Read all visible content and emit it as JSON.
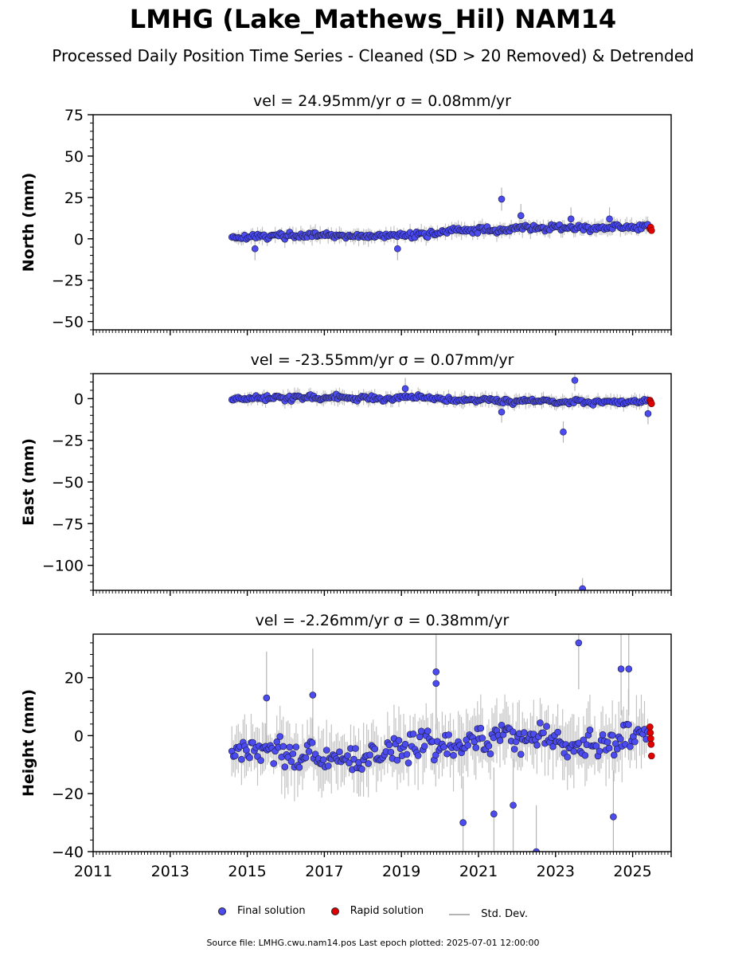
{
  "figure": {
    "title": "LMHG (Lake_Mathews_Hil) NAM14",
    "subtitle": "Processed Daily Position Time Series - Cleaned (SD > 20 Removed) & Detrended",
    "source_note": "Source file: LMHG.cwu.nam14.pos  Last epoch plotted: 2025-07-01 12:00:00"
  },
  "legend": {
    "final": "Final solution",
    "rapid": "Rapid solution",
    "stddev": "Std. Dev."
  },
  "colors": {
    "final": "#4b4bf0",
    "rapid": "#e00000",
    "stddev": "#b4b4b4",
    "marker_edge": "#1a1a3a"
  },
  "chart_data": [
    {
      "type": "scatter",
      "title": "vel = 24.95mm/yr   σ = 0.08mm/yr",
      "ylabel": "North (mm)",
      "xlim": [
        2011,
        2026
      ],
      "ylim": [
        -55,
        75
      ],
      "yticks": [
        -50,
        -25,
        0,
        25,
        50,
        75
      ],
      "ytick_labels": [
        "−50",
        "−25",
        "0",
        "25",
        "50",
        "75"
      ],
      "series": [
        {
          "name": "Final solution",
          "x": [
            2014.6,
            2014.9,
            2015.2,
            2015.5,
            2015.8,
            2016.1,
            2016.4,
            2016.7,
            2017.0,
            2017.3,
            2017.6,
            2017.9,
            2018.2,
            2018.5,
            2018.8,
            2019.1,
            2019.4,
            2019.7,
            2020.0,
            2020.3,
            2020.6,
            2020.9,
            2021.2,
            2021.5,
            2021.8,
            2022.1,
            2022.4,
            2022.7,
            2023.0,
            2023.3,
            2023.6,
            2023.9,
            2024.2,
            2024.5,
            2024.8,
            2025.1,
            2025.4
          ],
          "y": [
            1,
            1,
            2,
            1,
            2,
            2,
            2,
            2,
            2,
            2,
            1,
            2,
            1,
            2,
            2,
            2,
            3,
            3,
            4,
            5,
            5,
            5,
            6,
            5,
            6,
            7,
            7,
            6,
            7,
            7,
            7,
            6,
            7,
            7,
            7,
            7,
            8
          ]
        },
        {
          "name": "Rapid solution",
          "x": [
            2025.45,
            2025.47,
            2025.49
          ],
          "y": [
            6,
            7,
            5
          ]
        }
      ],
      "outliers": {
        "x": [
          2015.2,
          2018.9,
          2021.6,
          2022.1,
          2023.4,
          2024.4
        ],
        "y": [
          -6,
          -6,
          24,
          14,
          12,
          12
        ]
      }
    },
    {
      "type": "scatter",
      "title": "vel = -23.55mm/yr   σ = 0.07mm/yr",
      "ylabel": "East (mm)",
      "xlim": [
        2011,
        2026
      ],
      "ylim": [
        -115,
        15
      ],
      "yticks": [
        -100,
        -75,
        -50,
        -25,
        0
      ],
      "ytick_labels": [
        "−100",
        "−75",
        "−50",
        "−25",
        "0"
      ],
      "series": [
        {
          "name": "Final solution",
          "x": [
            2014.6,
            2014.9,
            2015.2,
            2015.5,
            2015.8,
            2016.1,
            2016.4,
            2016.7,
            2017.0,
            2017.3,
            2017.6,
            2017.9,
            2018.2,
            2018.5,
            2018.8,
            2019.1,
            2019.4,
            2019.7,
            2020.0,
            2020.3,
            2020.6,
            2020.9,
            2021.2,
            2021.5,
            2021.8,
            2022.1,
            2022.4,
            2022.7,
            2023.0,
            2023.3,
            2023.6,
            2023.9,
            2024.2,
            2024.5,
            2024.8,
            2025.1,
            2025.4
          ],
          "y": [
            0,
            0,
            1,
            0,
            1,
            0,
            1,
            1,
            0,
            1,
            0,
            0,
            1,
            0,
            0,
            1,
            1,
            0,
            0,
            -1,
            -1,
            -1,
            0,
            -1,
            -2,
            -1,
            -1,
            -1,
            -2,
            -2,
            -1,
            -3,
            -2,
            -2,
            -2,
            -2,
            -1
          ]
        },
        {
          "name": "Rapid solution",
          "x": [
            2025.45,
            2025.47,
            2025.49
          ],
          "y": [
            -1,
            -2,
            -3
          ]
        }
      ],
      "outliers": {
        "x": [
          2019.1,
          2021.6,
          2023.2,
          2023.5,
          2023.7,
          2025.4
        ],
        "y": [
          6,
          -8,
          -20,
          11,
          -114,
          -9
        ]
      }
    },
    {
      "type": "scatter",
      "title": "vel = -2.26mm/yr   σ = 0.38mm/yr",
      "ylabel": "Height (mm)",
      "xlim": [
        2011,
        2026
      ],
      "ylim": [
        -40,
        35
      ],
      "yticks": [
        -40,
        -20,
        0,
        20
      ],
      "ytick_labels": [
        "−40",
        "−20",
        "0",
        "20"
      ],
      "xticks": [
        2011,
        2013,
        2015,
        2017,
        2019,
        2021,
        2023,
        2025
      ],
      "xtick_labels": [
        "2011",
        "2013",
        "2015",
        "2017",
        "2019",
        "2021",
        "2023",
        "2025"
      ],
      "series": [
        {
          "name": "Final solution",
          "x": [
            2014.6,
            2014.9,
            2015.2,
            2015.5,
            2015.8,
            2016.1,
            2016.4,
            2016.7,
            2017.0,
            2017.3,
            2017.6,
            2017.9,
            2018.2,
            2018.5,
            2018.8,
            2019.1,
            2019.4,
            2019.7,
            2020.0,
            2020.3,
            2020.6,
            2020.9,
            2021.2,
            2021.5,
            2021.8,
            2022.1,
            2022.4,
            2022.7,
            2023.0,
            2023.3,
            2023.6,
            2023.9,
            2024.2,
            2024.5,
            2024.8,
            2025.1,
            2025.4
          ],
          "y": [
            -6,
            -5,
            -4,
            -6,
            -3,
            -8,
            -9,
            -7,
            -6,
            -8,
            -10,
            -9,
            -8,
            -7,
            -6,
            -5,
            -3,
            -2,
            -3,
            -4,
            -3,
            -2,
            -1,
            -2,
            0,
            -1,
            0,
            1,
            -1,
            -2,
            -3,
            -2,
            -4,
            -2,
            0,
            1,
            2
          ]
        },
        {
          "name": "Rapid solution",
          "x": [
            2025.45,
            2025.46,
            2025.47,
            2025.48,
            2025.49
          ],
          "y": [
            3,
            1,
            -1,
            -3,
            -7
          ]
        }
      ],
      "outliers": {
        "x": [
          2015.5,
          2016.7,
          2019.9,
          2019.9,
          2020.6,
          2021.4,
          2021.9,
          2022.5,
          2023.6,
          2024.5,
          2024.7,
          2024.9
        ],
        "y": [
          13,
          14,
          22,
          18,
          -30,
          -27,
          -24,
          -40,
          32,
          -28,
          23,
          23
        ]
      }
    }
  ]
}
